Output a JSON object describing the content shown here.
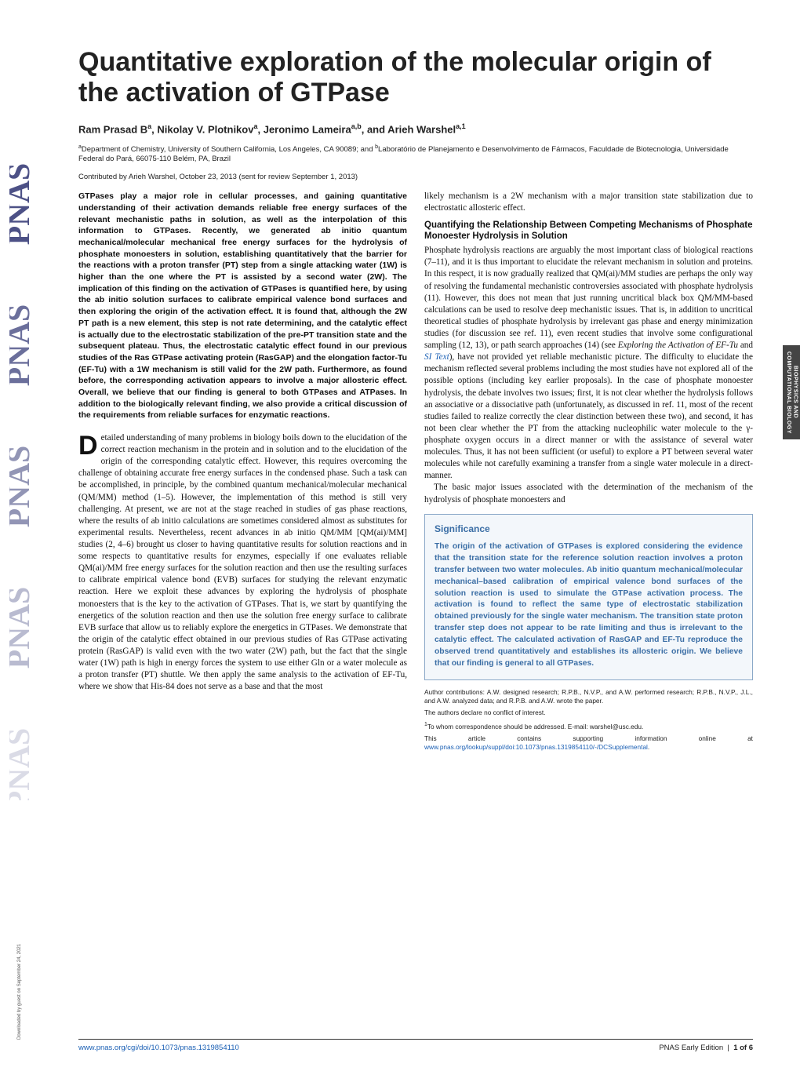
{
  "logo_alt": "PNAS",
  "download_note": "Downloaded by guest on September 24, 2021",
  "category_tab": "BIOPHYSICS AND COMPUTATIONAL BIOLOGY",
  "title": "Quantitative exploration of the molecular origin of the activation of GTPase",
  "authors_html": "Ram Prasad B<sup>a</sup>, Nikolay V. Plotnikov<sup>a</sup>, Jeronimo Lameira<sup>a,b</sup>, and Arieh Warshel<sup>a,1</sup>",
  "affiliations_html": "<sup>a</sup>Department of Chemistry, University of Southern California, Los Angeles, CA 90089; and <sup>b</sup>Laboratório de Planejamento e Desenvolvimento de Fármacos, Faculdade de Biotecnologia, Universidade Federal do Pará, 66075-110 Belém, PA, Brazil",
  "contributed": "Contributed by Arieh Warshel, October 23, 2013 (sent for review September 1, 2013)",
  "abstract": "GTPases play a major role in cellular processes, and gaining quantitative understanding of their activation demands reliable free energy surfaces of the relevant mechanistic paths in solution, as well as the interpolation of this information to GTPases. Recently, we generated ab initio quantum mechanical/molecular mechanical free energy surfaces for the hydrolysis of phosphate monoesters in solution, establishing quantitatively that the barrier for the reactions with a proton transfer (PT) step from a single attacking water (1W) is higher than the one where the PT is assisted by a second water (2W). The implication of this finding on the activation of GTPases is quantified here, by using the ab initio solution surfaces to calibrate empirical valence bond surfaces and then exploring the origin of the activation effect. It is found that, although the 2W PT path is a new element, this step is not rate determining, and the catalytic effect is actually due to the electrostatic stabilization of the pre-PT transition state and the subsequent plateau. Thus, the electrostatic catalytic effect found in our previous studies of the Ras GTPase activating protein (RasGAP) and the elongation factor-Tu (EF-Tu) with a 1W mechanism is still valid for the 2W path. Furthermore, as found before, the corresponding activation appears to involve a major allosteric effect. Overall, we believe that our finding is general to both GTPases and ATPases. In addition to the biologically relevant finding, we also provide a critical discussion of the requirements from reliable surfaces for enzymatic reactions.",
  "left_body": "Detailed understanding of many problems in biology boils down to the elucidation of the correct reaction mechanism in the protein and in solution and to the elucidation of the origin of the corresponding catalytic effect. However, this requires overcoming the challenge of obtaining accurate free energy surfaces in the condensed phase. Such a task can be accomplished, in principle, by the combined quantum mechanical/molecular mechanical (QM/MM) method (1–5). However, the implementation of this method is still very challenging. At present, we are not at the stage reached in studies of gas phase reactions, where the results of ab initio calculations are sometimes considered almost as substitutes for experimental results. Nevertheless, recent advances in ab initio QM/MM [QM(ai)/MM] studies (2, 4–6) brought us closer to having quantitative results for solution reactions and in some respects to quantitative results for enzymes, especially if one evaluates reliable QM(ai)/MM free energy surfaces for the solution reaction and then use the resulting surfaces to calibrate empirical valence bond (EVB) surfaces for studying the relevant enzymatic reaction. Here we exploit these advances by exploring the hydrolysis of phosphate monoesters that is the key to the activation of GTPases. That is, we start by quantifying the energetics of the solution reaction and then use the solution free energy surface to calibrate EVB surface that allow us to reliably explore the energetics in GTPases. We demonstrate that the origin of the catalytic effect obtained in our previous studies of Ras GTPase activating protein (RasGAP) is valid even with the two water (2W) path, but the fact that the single water (1W) path is high in energy forces the system to use either Gln or a water molecule as a proton transfer (PT) shuttle. We then apply the same analysis to the activation of EF-Tu, where we show that His-84 does not serve as a base and that the most",
  "right_intro": "likely mechanism is a 2W mechanism with a major transition state stabilization due to electrostatic allosteric effect.",
  "right_section_head": "Quantifying the Relationship Between Competing Mechanisms of Phosphate Monoester Hydrolysis in Solution",
  "right_body1_html": "Phosphate hydrolysis reactions are arguably the most important class of biological reactions (7–11), and it is thus important to elucidate the relevant mechanism in solution and proteins. In this respect, it is now gradually realized that QM(ai)/MM studies are perhaps the only way of resolving the fundamental mechanistic controversies associated with phosphate hydrolysis (11). However, this does not mean that just running uncritical black box QM/MM-based calculations can be used to resolve deep mechanistic issues. That is, in addition to uncritical theoretical studies of phosphate hydrolysis by irrelevant gas phase and energy minimization studies (for discussion see ref. 11), even recent studies that involve some configurational sampling (12, 13), or path search approaches (14) (see <span class=\"italic\">Exploring the Activation of EF-Tu</span> and <span class=\"italic link\">SI Text</span>), have not provided yet reliable mechanistic picture. The difficulty to elucidate the mechanism reflected several problems including the most studies have not explored all of the possible options (including key earlier proposals). In the case of phosphate monoester hydrolysis, the debate involves two issues; first, it is not clear whether the hydrolysis follows an associative or a dissociative path (unfortunately, as discussed in ref. 11, most of the recent studies failed to realize correctly the clear distinction between these two), and second, it has not been clear whether the PT from the attacking nucleophilic water molecule to the γ-phosphate oxygen occurs in a direct manner or with the assistance of several water molecules. Thus, it has not been sufficient (or useful) to explore a PT between several water molecules while not carefully examining a transfer from a single water molecule in a direct-manner.",
  "right_body2": "The basic major issues associated with the determination of the mechanism of the hydrolysis of phosphate monoesters and",
  "significance_head": "Significance",
  "significance_body": "The origin of the activation of GTPases is explored considering the evidence that the transition state for the reference solution reaction involves a proton transfer between two water molecules. Ab initio quantum mechanical/molecular mechanical–based calibration of empirical valence bond surfaces of the solution reaction is used to simulate the GTPase activation process. The activation is found to reflect the same type of electrostatic stabilization obtained previously for the single water mechanism. The transition state proton transfer step does not appear to be rate limiting and thus is irrelevant to the catalytic effect. The calculated activation of RasGAP and EF-Tu reproduce the observed trend quantitatively and establishes its allosteric origin. We believe that our finding is general to all GTPases.",
  "footnotes": {
    "contrib": "Author contributions: A.W. designed research; R.P.B., N.V.P., and A.W. performed research; R.P.B., N.V.P., J.L., and A.W. analyzed data; and R.P.B. and A.W. wrote the paper.",
    "coi": "The authors declare no conflict of interest.",
    "corr_html": "<sup>1</sup>To whom correspondence should be addressed. E-mail: warshel@usc.edu.",
    "si_html": "This article contains supporting information online at <span class=\"link\">www.pnas.org/lookup/suppl/doi:10.1073/pnas.1319854110/-/DCSupplemental</span>."
  },
  "footer": {
    "left": "www.pnas.org/cgi/doi/10.1073/pnas.1319854110",
    "right_html": "PNAS Early Edition &nbsp;|&nbsp; <b>1 of 6</b>"
  },
  "colors": {
    "link": "#1a5fb4",
    "sig_border": "#8aa8c8",
    "sig_bg": "#f3f7fb",
    "sig_text": "#3b6ea5",
    "tab_bg": "#444444"
  }
}
